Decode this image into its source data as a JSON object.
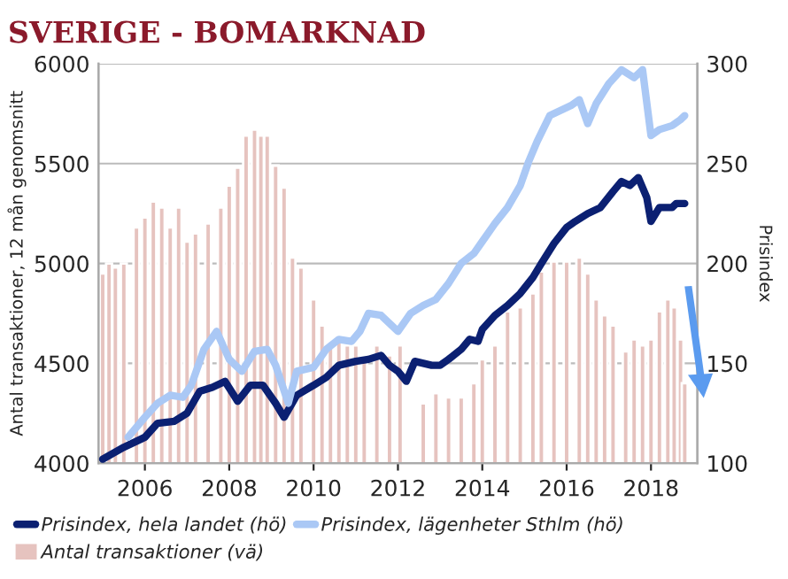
{
  "chart_data": {
    "type": "bar",
    "title": "SVERIGE - BOMARKNAD",
    "ylabel": "Antal transaktioner, 12 mån genomsnitt",
    "y2label": "Prisindex",
    "xlim": [
      2004.9,
      2019.1
    ],
    "xticks": [
      2006,
      2008,
      2010,
      2012,
      2014,
      2016,
      2018
    ],
    "ylim": [
      4000,
      6000
    ],
    "yticks": [
      4000,
      4500,
      5000,
      5500,
      6000
    ],
    "y2lim": [
      100,
      300
    ],
    "y2ticks": [
      100,
      150,
      200,
      250,
      300
    ],
    "grid": "y",
    "legend": "bottom",
    "series": [
      {
        "name": "Prisindex, hela landet (hö)",
        "type": "line",
        "axis": "y2",
        "color": "#0b2072",
        "x": [
          2005.0,
          2005.5,
          2006.0,
          2006.3,
          2006.7,
          2007.0,
          2007.3,
          2007.6,
          2007.9,
          2008.2,
          2008.5,
          2008.8,
          2009.1,
          2009.3,
          2009.6,
          2010.0,
          2010.3,
          2010.6,
          2011.0,
          2011.3,
          2011.6,
          2011.8,
          2012.0,
          2012.2,
          2012.4,
          2012.8,
          2013.0,
          2013.2,
          2013.5,
          2013.7,
          2013.9,
          2014.0,
          2014.3,
          2014.6,
          2014.9,
          2015.2,
          2015.4,
          2015.7,
          2016.0,
          2016.2,
          2016.5,
          2016.8,
          2017.1,
          2017.3,
          2017.5,
          2017.7,
          2017.9,
          2018.0,
          2018.2,
          2018.5,
          2018.6,
          2018.8
        ],
        "values": [
          102,
          108,
          113,
          120,
          121,
          125,
          136,
          138,
          141,
          131,
          139,
          139,
          130,
          123,
          134,
          139,
          143,
          149,
          151,
          152,
          154,
          149,
          146,
          141,
          151,
          149,
          149,
          152,
          157,
          162,
          161,
          167,
          174,
          179,
          185,
          193,
          200,
          210,
          218,
          221,
          225,
          228,
          236,
          241,
          239,
          243,
          233,
          221,
          228,
          228,
          230,
          230
        ]
      },
      {
        "name": "Prisindex, lägenheter Sthlm (hö)",
        "type": "line",
        "axis": "y2",
        "color": "#aac8f5",
        "x": [
          2005.6,
          2006.0,
          2006.3,
          2006.6,
          2006.9,
          2007.1,
          2007.4,
          2007.7,
          2008.0,
          2008.3,
          2008.6,
          2008.9,
          2009.1,
          2009.4,
          2009.6,
          2010.0,
          2010.3,
          2010.6,
          2010.9,
          2011.1,
          2011.3,
          2011.6,
          2011.8,
          2012.0,
          2012.3,
          2012.6,
          2012.9,
          2013.2,
          2013.5,
          2013.8,
          2014.0,
          2014.3,
          2014.6,
          2014.9,
          2015.1,
          2015.3,
          2015.6,
          2015.9,
          2016.1,
          2016.3,
          2016.5,
          2016.7,
          2017.0,
          2017.3,
          2017.6,
          2017.8,
          2018.0,
          2018.2,
          2018.5,
          2018.7,
          2018.8
        ],
        "values": [
          113,
          123,
          130,
          134,
          133,
          139,
          157,
          166,
          152,
          146,
          156,
          157,
          149,
          130,
          146,
          148,
          157,
          162,
          161,
          166,
          175,
          174,
          170,
          166,
          175,
          179,
          182,
          190,
          200,
          205,
          211,
          220,
          228,
          239,
          251,
          261,
          274,
          277,
          279,
          282,
          270,
          280,
          290,
          297,
          293,
          297,
          264,
          267,
          269,
          272,
          274
        ]
      },
      {
        "name": "Antal transaktioner (vä)",
        "color": "#e6c3bf",
        "x": [
          2005.0,
          2005.15,
          2005.3,
          2005.5,
          2005.8,
          2006.0,
          2006.2,
          2006.4,
          2006.6,
          2006.8,
          2007.0,
          2007.2,
          2007.5,
          2007.8,
          2008.0,
          2008.2,
          2008.4,
          2008.6,
          2008.75,
          2008.9,
          2009.1,
          2009.3,
          2009.5,
          2009.7,
          2010.0,
          2010.2,
          2010.4,
          2010.6,
          2010.8,
          2011.0,
          2011.2,
          2011.5,
          2011.8,
          2012.05,
          2012.3,
          2012.6,
          2012.9,
          2013.2,
          2013.5,
          2013.8,
          2014.0,
          2014.3,
          2014.6,
          2014.9,
          2015.2,
          2015.4,
          2015.7,
          2016.0,
          2016.3,
          2016.5,
          2016.7,
          2016.9,
          2017.1,
          2017.4,
          2017.6,
          2017.8,
          2018.0,
          2018.2,
          2018.4,
          2018.55,
          2018.7,
          2018.8
        ],
        "values": [
          4950,
          5000,
          4980,
          5000,
          5180,
          5230,
          5310,
          5280,
          5180,
          5280,
          5110,
          5150,
          5200,
          5280,
          5390,
          5480,
          5640,
          5670,
          5640,
          5640,
          5490,
          5380,
          5030,
          4980,
          4820,
          4690,
          4580,
          4620,
          4590,
          4590,
          4520,
          4590,
          4540,
          4590,
          null,
          4300,
          4350,
          4330,
          4330,
          4400,
          4520,
          4590,
          4760,
          4780,
          4850,
          4960,
          5010,
          5010,
          5030,
          4950,
          4820,
          4740,
          4690,
          4560,
          4620,
          4590,
          4620,
          4760,
          4820,
          4780,
          4620,
          4400
        ]
      }
    ]
  }
}
